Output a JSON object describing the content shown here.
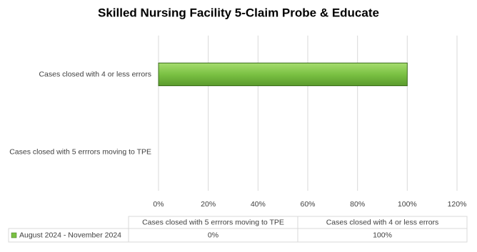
{
  "chart_data": {
    "type": "hbar",
    "title": "Skilled Nursing Facility 5-Claim Probe & Educate",
    "categories": [
      "Cases closed with 5 errrors moving to TPE",
      "Cases closed with 4 or less errors"
    ],
    "series": [
      {
        "name": "August 2024 - November 2024",
        "color": "#7ac143",
        "values": [
          0,
          100
        ],
        "value_labels": [
          "0%",
          "100%"
        ]
      }
    ],
    "xlim": [
      0,
      120
    ],
    "xticks": [
      {
        "value": 0,
        "label": "0%"
      },
      {
        "value": 20,
        "label": "20%"
      },
      {
        "value": 40,
        "label": "40%"
      },
      {
        "value": 60,
        "label": "60%"
      },
      {
        "value": 80,
        "label": "80%"
      },
      {
        "value": 100,
        "label": "100%"
      },
      {
        "value": 120,
        "label": "120%"
      }
    ],
    "grid": true,
    "data_table": true
  }
}
